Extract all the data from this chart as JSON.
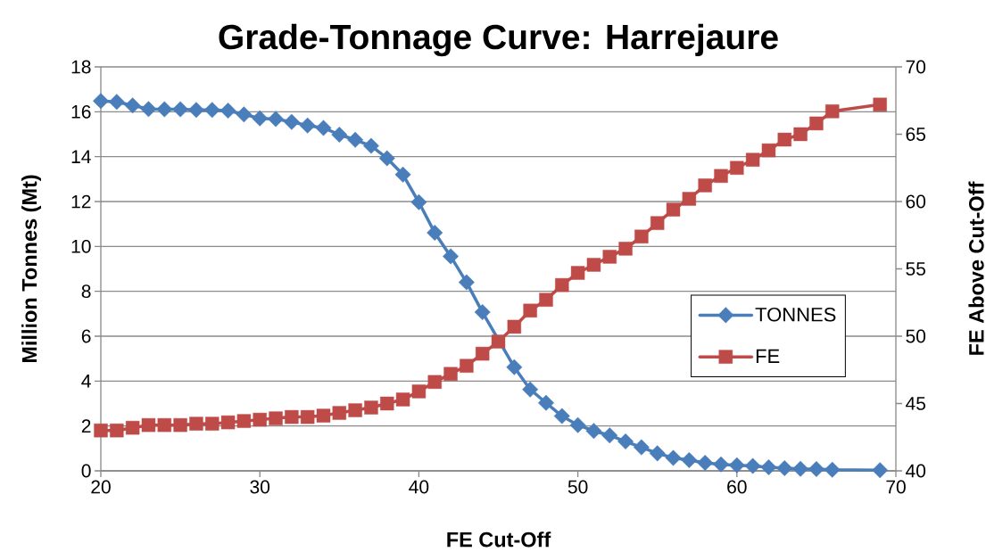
{
  "chart_data": {
    "type": "line",
    "title": "Grade-Tonnage Curve: Harrejaure",
    "xlabel": "FE Cut-Off",
    "ylabel": "Million Tonnes (Mt)",
    "y2label": "FE Above Cut-Off",
    "x": [
      20,
      21,
      22,
      23,
      24,
      25,
      26,
      27,
      28,
      29,
      30,
      31,
      32,
      33,
      34,
      35,
      36,
      37,
      38,
      39,
      40,
      41,
      42,
      43,
      44,
      45,
      46,
      47,
      48,
      49,
      50,
      51,
      52,
      53,
      54,
      55,
      56,
      57,
      58,
      59,
      60,
      61,
      62,
      63,
      64,
      65,
      66,
      69
    ],
    "series": [
      {
        "name": "TONNES",
        "color": "#4a7ebb",
        "marker": "diamond",
        "values": [
          16.48,
          16.44,
          16.28,
          16.12,
          16.11,
          16.11,
          16.08,
          16.08,
          16.05,
          15.88,
          15.71,
          15.68,
          15.55,
          15.39,
          15.28,
          14.98,
          14.75,
          14.48,
          13.93,
          13.2,
          11.97,
          10.61,
          9.56,
          8.4,
          7.07,
          null,
          4.62,
          3.63,
          3.03,
          2.44,
          2.04,
          1.78,
          1.58,
          1.31,
          1.05,
          0.78,
          0.58,
          0.48,
          0.36,
          0.29,
          0.25,
          0.22,
          0.16,
          0.12,
          0.09,
          0.08,
          0.05,
          0.03
        ]
      },
      {
        "name": "FE",
        "color": "#be4b48",
        "marker": "square",
        "axis": "y2",
        "values": [
          43.0,
          43.0,
          43.2,
          43.4,
          43.4,
          43.4,
          43.5,
          43.5,
          43.6,
          43.7,
          43.8,
          43.9,
          44.0,
          44.0,
          44.1,
          44.3,
          44.5,
          44.7,
          45.0,
          45.3,
          45.9,
          46.6,
          47.2,
          47.8,
          48.7,
          49.6,
          50.7,
          51.9,
          52.7,
          53.8,
          54.7,
          55.3,
          55.9,
          56.5,
          57.4,
          58.4,
          59.4,
          60.2,
          61.2,
          61.9,
          62.5,
          63.1,
          63.8,
          64.6,
          65.0,
          65.8,
          66.7,
          67.2
        ]
      }
    ],
    "xlim": [
      20,
      70
    ],
    "xticks": [
      20,
      30,
      40,
      50,
      60,
      70
    ],
    "ylim": [
      0,
      18
    ],
    "yticks": [
      0,
      2,
      4,
      6,
      8,
      10,
      12,
      14,
      16,
      18
    ],
    "y2lim": [
      40,
      70
    ],
    "y2ticks": [
      40,
      45,
      50,
      55,
      60,
      65,
      70
    ],
    "grid": "y",
    "legend": "right",
    "line_style": "solid"
  }
}
